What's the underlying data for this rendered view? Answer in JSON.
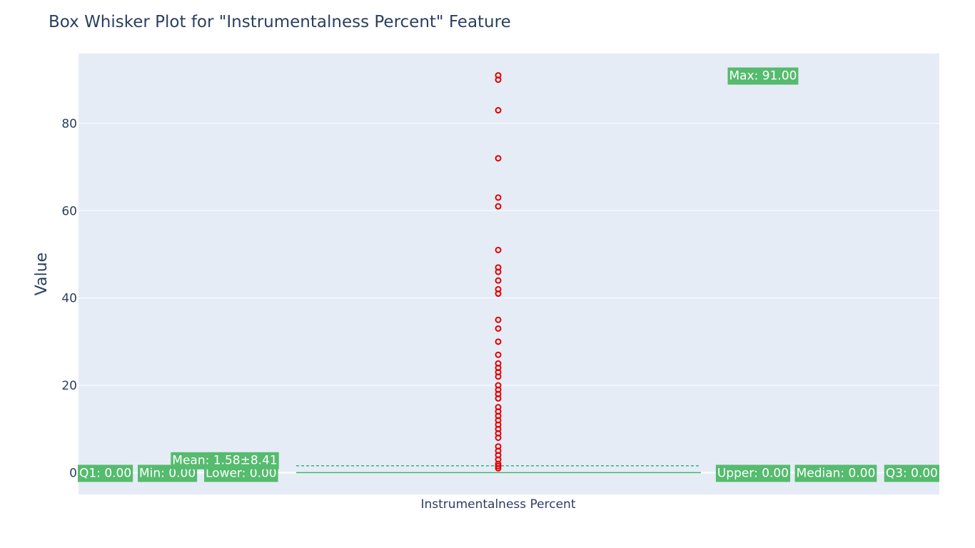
{
  "chart_data": {
    "type": "box",
    "title": "Box Whisker Plot for \"Instrumentalness Percent\" Feature",
    "xlabel": "",
    "ylabel": "Value",
    "categories": [
      "Instrumentalness Percent"
    ],
    "ylim": [
      -5,
      96
    ],
    "yticks": [
      0,
      20,
      40,
      60,
      80
    ],
    "grid": true,
    "box": {
      "min": 0,
      "lower_fence": 0,
      "q1": 0,
      "median": 0,
      "q3": 0,
      "upper_fence": 0,
      "max": 91,
      "mean": 1.58,
      "std": 8.41
    },
    "outliers": [
      1,
      1.5,
      2,
      3,
      4,
      5,
      6,
      8,
      9,
      10,
      11,
      12,
      13,
      14,
      15,
      17,
      18,
      19,
      20,
      22,
      23,
      24,
      25,
      27,
      30,
      33,
      35,
      41,
      42,
      44,
      46,
      47,
      51,
      61,
      63,
      72,
      83,
      90,
      91
    ],
    "annotations": [
      {
        "key": "q1",
        "text": "Q1: 0.00",
        "value": 0
      },
      {
        "key": "min",
        "text": "Min: 0.00",
        "value": 0
      },
      {
        "key": "lower",
        "text": "Lower: 0.00",
        "value": 0
      },
      {
        "key": "mean",
        "text": "Mean: 1.58±8.41",
        "value": 1.58
      },
      {
        "key": "upper",
        "text": "Upper: 0.00",
        "value": 0
      },
      {
        "key": "median",
        "text": "Median: 0.00",
        "value": 0
      },
      {
        "key": "q3",
        "text": "Q3: 0.00",
        "value": 0
      },
      {
        "key": "max",
        "text": "Max: 91.00",
        "value": 91
      }
    ],
    "colors": {
      "plot_bg": "#e5ecf6",
      "grid": "#ffffff",
      "text": "#2a3f5f",
      "box_line": "#3cb371",
      "annotation_bg": "#55bb6e",
      "outlier": "#e00000"
    }
  }
}
